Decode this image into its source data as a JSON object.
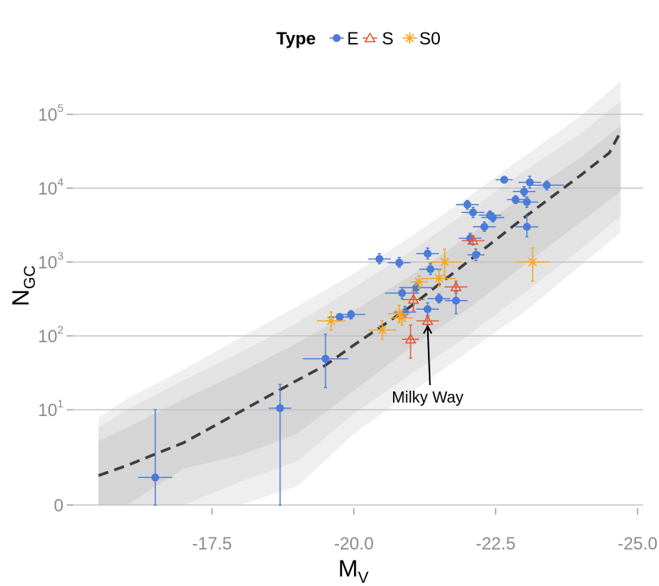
{
  "chart_data": {
    "type": "scatter",
    "x_scale": "reversed",
    "y_scale": "log",
    "xlabel": {
      "base": "M",
      "sub": "V"
    },
    "ylabel": {
      "base": "N",
      "sub": "GC"
    },
    "xlim": [
      -15.5,
      -25.0
    ],
    "ylim": [
      0,
      1000000
    ],
    "x_ticks": [
      {
        "value": -17.5,
        "label": "-17.5"
      },
      {
        "value": -20.0,
        "label": "-20.0"
      },
      {
        "value": -22.5,
        "label": "-22.5"
      },
      {
        "value": -25.0,
        "label": "-25.0"
      }
    ],
    "y_ticks": [
      {
        "value": 0,
        "base": "0",
        "exp": ""
      },
      {
        "value": 10,
        "base": "10",
        "exp": "1"
      },
      {
        "value": 100,
        "base": "10",
        "exp": "2"
      },
      {
        "value": 1000,
        "base": "10",
        "exp": "3"
      },
      {
        "value": 10000,
        "base": "10",
        "exp": "4"
      },
      {
        "value": 100000,
        "base": "10",
        "exp": "5"
      }
    ],
    "grid": "horizontal",
    "legend": {
      "title": "Type",
      "position": "top",
      "entries": [
        {
          "label": "E",
          "color": "#4a7bd8",
          "marker": "circle"
        },
        {
          "label": "S",
          "color": "#e0583a",
          "marker": "triangle"
        },
        {
          "label": "S0",
          "color": "#f5a623",
          "marker": "asterisk"
        }
      ]
    },
    "fit_line": {
      "style": "dashed",
      "color": "#3c3c3c",
      "points": [
        [
          -15.5,
          1.1
        ],
        [
          -16.0,
          1.7
        ],
        [
          -17.0,
          3.8
        ],
        [
          -18.0,
          9.5
        ],
        [
          -19.0,
          25
        ],
        [
          -19.5,
          40
        ],
        [
          -20.0,
          75
        ],
        [
          -21.0,
          250
        ],
        [
          -22.0,
          1000
        ],
        [
          -23.0,
          4000
        ],
        [
          -24.0,
          15000
        ],
        [
          -24.5,
          30000
        ],
        [
          -24.7,
          58000
        ]
      ]
    },
    "bands": [
      {
        "level": "outer",
        "color": "#efefef",
        "x": [
          -15.5,
          -16.0,
          -17.0,
          -18.0,
          -19.0,
          -20.0,
          -21.0,
          -22.0,
          -23.0,
          -24.0,
          -24.7
        ],
        "upper": [
          8,
          14,
          35,
          95,
          250,
          700,
          2200,
          7500,
          27000,
          95000,
          280000
        ],
        "lower": [
          0,
          0,
          0,
          0,
          0.6,
          5,
          17,
          60,
          210,
          900,
          2500
        ]
      },
      {
        "level": "middle",
        "color": "#e3e3e3",
        "x": [
          -15.5,
          -16.0,
          -17.0,
          -18.0,
          -19.0,
          -20.0,
          -21.0,
          -22.0,
          -23.0,
          -24.0,
          -24.7
        ],
        "upper": [
          6,
          10,
          25,
          60,
          150,
          450,
          1400,
          4800,
          17000,
          55000,
          150000
        ],
        "lower": [
          0,
          0,
          0,
          0.8,
          2,
          9,
          30,
          100,
          380,
          1500,
          4200
        ]
      },
      {
        "level": "inner",
        "color": "#d5d5d5",
        "x": [
          -15.5,
          -16.0,
          -17.0,
          -18.0,
          -19.0,
          -20.0,
          -21.0,
          -22.0,
          -23.0,
          -24.0,
          -24.7
        ],
        "upper": [
          4,
          6,
          14,
          32,
          80,
          220,
          650,
          2200,
          8000,
          26000,
          70000
        ],
        "lower": [
          0,
          0,
          1.5,
          2.5,
          5,
          18,
          70,
          230,
          900,
          3500,
          9000
        ]
      }
    ],
    "series": [
      {
        "name": "E",
        "color": "#4a7bd8",
        "marker": "circle",
        "points": [
          {
            "x": -16.5,
            "y": 1.0,
            "xerr": 0.3,
            "ylo": 0,
            "yhi": 10
          },
          {
            "x": -18.7,
            "y": 10.5,
            "xerr": 0.2,
            "ylo": 0,
            "yhi": 22
          },
          {
            "x": -19.5,
            "y": 49,
            "xerr": 0.4,
            "ylo": 20,
            "yhi": 105
          },
          {
            "x": -19.75,
            "y": 180,
            "xerr": 0.2,
            "ylo": 160,
            "yhi": 200
          },
          {
            "x": -19.95,
            "y": 195,
            "xerr": 0.25,
            "ylo": 170,
            "yhi": 220
          },
          {
            "x": -20.45,
            "y": 1100,
            "xerr": 0.2,
            "ylo": 950,
            "yhi": 1300
          },
          {
            "x": -20.8,
            "y": 980,
            "xerr": 0.2,
            "ylo": 850,
            "yhi": 1150
          },
          {
            "x": -20.85,
            "y": 380,
            "xerr": 0.3,
            "ylo": 320,
            "yhi": 450
          },
          {
            "x": -20.9,
            "y": 210,
            "xerr": 0.2,
            "ylo": 180,
            "yhi": 250
          },
          {
            "x": -21.1,
            "y": 450,
            "xerr": 0.3,
            "ylo": 380,
            "yhi": 530
          },
          {
            "x": -21.3,
            "y": 1300,
            "xerr": 0.2,
            "ylo": 1100,
            "yhi": 1550
          },
          {
            "x": -21.35,
            "y": 800,
            "xerr": 0.2,
            "ylo": 680,
            "yhi": 950
          },
          {
            "x": -21.3,
            "y": 230,
            "xerr": 0.2,
            "ylo": 190,
            "yhi": 280
          },
          {
            "x": -21.5,
            "y": 320,
            "xerr": 0.2,
            "ylo": 280,
            "yhi": 370
          },
          {
            "x": -21.8,
            "y": 300,
            "xerr": 0.2,
            "ylo": 200,
            "yhi": 400
          },
          {
            "x": -22.0,
            "y": 6000,
            "xerr": 0.2,
            "ylo": 5200,
            "yhi": 6800
          },
          {
            "x": -22.1,
            "y": 4700,
            "xerr": 0.2,
            "ylo": 4000,
            "yhi": 5500
          },
          {
            "x": -22.05,
            "y": 2100,
            "xerr": 0.2,
            "ylo": 1800,
            "yhi": 2450
          },
          {
            "x": -22.15,
            "y": 1250,
            "xerr": 0.15,
            "ylo": 1050,
            "yhi": 1500
          },
          {
            "x": -22.3,
            "y": 3000,
            "xerr": 0.2,
            "ylo": 2600,
            "yhi": 3500
          },
          {
            "x": -22.4,
            "y": 4300,
            "xerr": 0.2,
            "ylo": 3800,
            "yhi": 4900
          },
          {
            "x": -22.45,
            "y": 4000,
            "xerr": 0.2,
            "ylo": 3500,
            "yhi": 4600
          },
          {
            "x": -22.65,
            "y": 13000,
            "xerr": 0.15,
            "ylo": 12000,
            "yhi": 14000
          },
          {
            "x": -22.85,
            "y": 7000,
            "xerr": 0.15,
            "ylo": 6200,
            "yhi": 7900
          },
          {
            "x": -23.0,
            "y": 9000,
            "xerr": 0.2,
            "ylo": 7800,
            "yhi": 10500
          },
          {
            "x": -23.05,
            "y": 6500,
            "xerr": 0.2,
            "ylo": 5500,
            "yhi": 7600
          },
          {
            "x": -23.1,
            "y": 12000,
            "xerr": 0.2,
            "ylo": 10000,
            "yhi": 14500
          },
          {
            "x": -23.05,
            "y": 3000,
            "xerr": 0.2,
            "ylo": 2200,
            "yhi": 4200
          },
          {
            "x": -23.4,
            "y": 11000,
            "xerr": 0.3,
            "ylo": 9500,
            "yhi": 12500
          }
        ]
      },
      {
        "name": "S",
        "color": "#e0583a",
        "marker": "triangle",
        "points": [
          {
            "x": -21.0,
            "y": 90,
            "xerr": 0.15,
            "ylo": 50,
            "yhi": 140
          },
          {
            "x": -21.05,
            "y": 310,
            "xerr": 0.2,
            "ylo": 220,
            "yhi": 410
          },
          {
            "x": -21.3,
            "y": 160,
            "xerr": 0.2,
            "ylo": 140,
            "yhi": 185
          },
          {
            "x": -21.8,
            "y": 460,
            "xerr": 0.2,
            "ylo": 380,
            "yhi": 550
          },
          {
            "x": -22.1,
            "y": 1950,
            "xerr": 0.2,
            "ylo": 1700,
            "yhi": 2250
          }
        ]
      },
      {
        "name": "S0",
        "color": "#f5a623",
        "marker": "asterisk",
        "points": [
          {
            "x": -19.6,
            "y": 160,
            "xerr": 0.25,
            "ylo": 120,
            "yhi": 210
          },
          {
            "x": -20.5,
            "y": 120,
            "xerr": 0.25,
            "ylo": 90,
            "yhi": 160
          },
          {
            "x": -20.8,
            "y": 200,
            "xerr": 0.2,
            "ylo": 150,
            "yhi": 260
          },
          {
            "x": -20.85,
            "y": 175,
            "xerr": 0.2,
            "ylo": 140,
            "yhi": 220
          },
          {
            "x": -21.15,
            "y": 540,
            "xerr": 0.15,
            "ylo": 440,
            "yhi": 650
          },
          {
            "x": -21.5,
            "y": 600,
            "xerr": 0.3,
            "ylo": 470,
            "yhi": 760
          },
          {
            "x": -21.6,
            "y": 1000,
            "xerr": 0.3,
            "ylo": 650,
            "yhi": 1500
          },
          {
            "x": -23.15,
            "y": 1000,
            "xerr": 0.3,
            "ylo": 550,
            "yhi": 1550
          }
        ]
      }
    ],
    "annotations": [
      {
        "text": "Milky Way",
        "x": -21.3,
        "y": 160,
        "arrow": true
      }
    ]
  }
}
